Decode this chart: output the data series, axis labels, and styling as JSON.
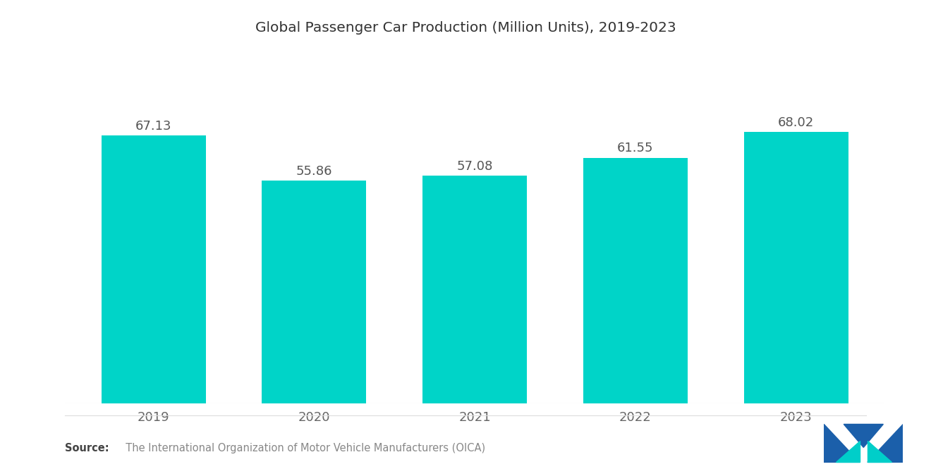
{
  "title": "Global Passenger Car Production (Million Units), 2019-2023",
  "categories": [
    "2019",
    "2020",
    "2021",
    "2022",
    "2023"
  ],
  "values": [
    67.13,
    55.86,
    57.08,
    61.55,
    68.02
  ],
  "bar_color": "#00D4C8",
  "background_color": "#ffffff",
  "title_fontsize": 14.5,
  "tick_fontsize": 13,
  "value_fontsize": 13,
  "source_bold": "Source:",
  "source_rest": "  The International Organization of Motor Vehicle Manufacturers (OICA)",
  "ylim": [
    0,
    80
  ],
  "bar_width": 0.65,
  "logo_blue": "#1B5FAA",
  "logo_teal": "#00CEC9"
}
